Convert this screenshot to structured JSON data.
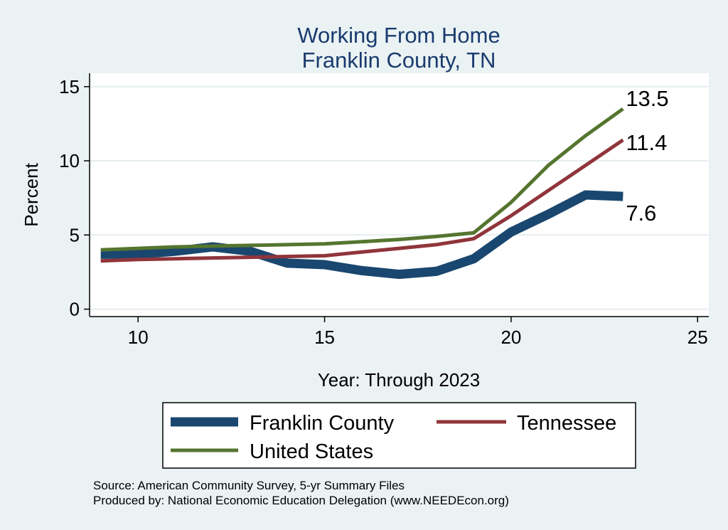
{
  "chart_data": {
    "type": "line",
    "title": [
      "Working From Home",
      "Franklin County, TN"
    ],
    "xlabel": "Year: Through 2023",
    "ylabel": "Percent",
    "xlim": [
      8.7,
      25.3
    ],
    "ylim": [
      -0.5,
      15.9
    ],
    "xticks": [
      10,
      15,
      20,
      25
    ],
    "yticks": [
      0,
      5,
      10,
      15
    ],
    "grid": "horizontal",
    "x": [
      9,
      10,
      11,
      12,
      13,
      14,
      15,
      16,
      17,
      18,
      19,
      20,
      21,
      22,
      23
    ],
    "series": [
      {
        "name": "Franklin County",
        "color": "#1a476f",
        "values": [
          3.7,
          3.7,
          3.9,
          4.2,
          3.9,
          3.1,
          3.0,
          2.6,
          2.35,
          2.55,
          3.4,
          5.2,
          6.4,
          7.7,
          7.6
        ],
        "end_label": "7.6"
      },
      {
        "name": "Tennessee",
        "color": "#90353b",
        "values": [
          3.25,
          3.35,
          3.4,
          3.45,
          3.5,
          3.55,
          3.6,
          3.85,
          4.1,
          4.35,
          4.75,
          6.3,
          8.0,
          9.7,
          11.4
        ],
        "end_label": "11.4"
      },
      {
        "name": "United States",
        "color": "#55752f",
        "values": [
          4.0,
          4.1,
          4.2,
          4.25,
          4.3,
          4.35,
          4.4,
          4.55,
          4.7,
          4.9,
          5.15,
          7.2,
          9.7,
          11.7,
          13.5
        ],
        "end_label": "13.5"
      }
    ],
    "legend": {
      "placement": "bottom",
      "entries": [
        "Franklin County",
        "Tennessee",
        "United States"
      ]
    }
  },
  "notes": {
    "source": "Source: American Community Survey, 5-yr Summary Files",
    "produced_by": "Produced by: National Economic Education Delegation (www.NEEDEcon.org)"
  }
}
